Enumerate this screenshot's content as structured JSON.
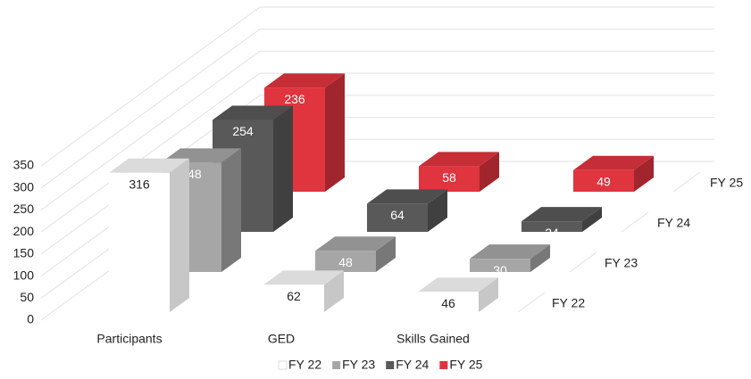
{
  "chart_data": {
    "type": "bar3d",
    "categories": [
      "Participants",
      "GED",
      "Skills Gained"
    ],
    "series": [
      {
        "name": "FY 22",
        "color": "#ffffff",
        "values": [
          316,
          62,
          46
        ]
      },
      {
        "name": "FY 23",
        "color": "#a6a6a6",
        "values": [
          248,
          48,
          30
        ]
      },
      {
        "name": "FY 24",
        "color": "#595959",
        "values": [
          254,
          64,
          24
        ]
      },
      {
        "name": "FY 25",
        "color": "#e0343f",
        "values": [
          236,
          58,
          49
        ]
      }
    ],
    "ylim": [
      0,
      350
    ],
    "yticks": [
      0,
      50,
      100,
      150,
      200,
      250,
      300,
      350
    ],
    "grid": true,
    "legend": "bottom"
  }
}
